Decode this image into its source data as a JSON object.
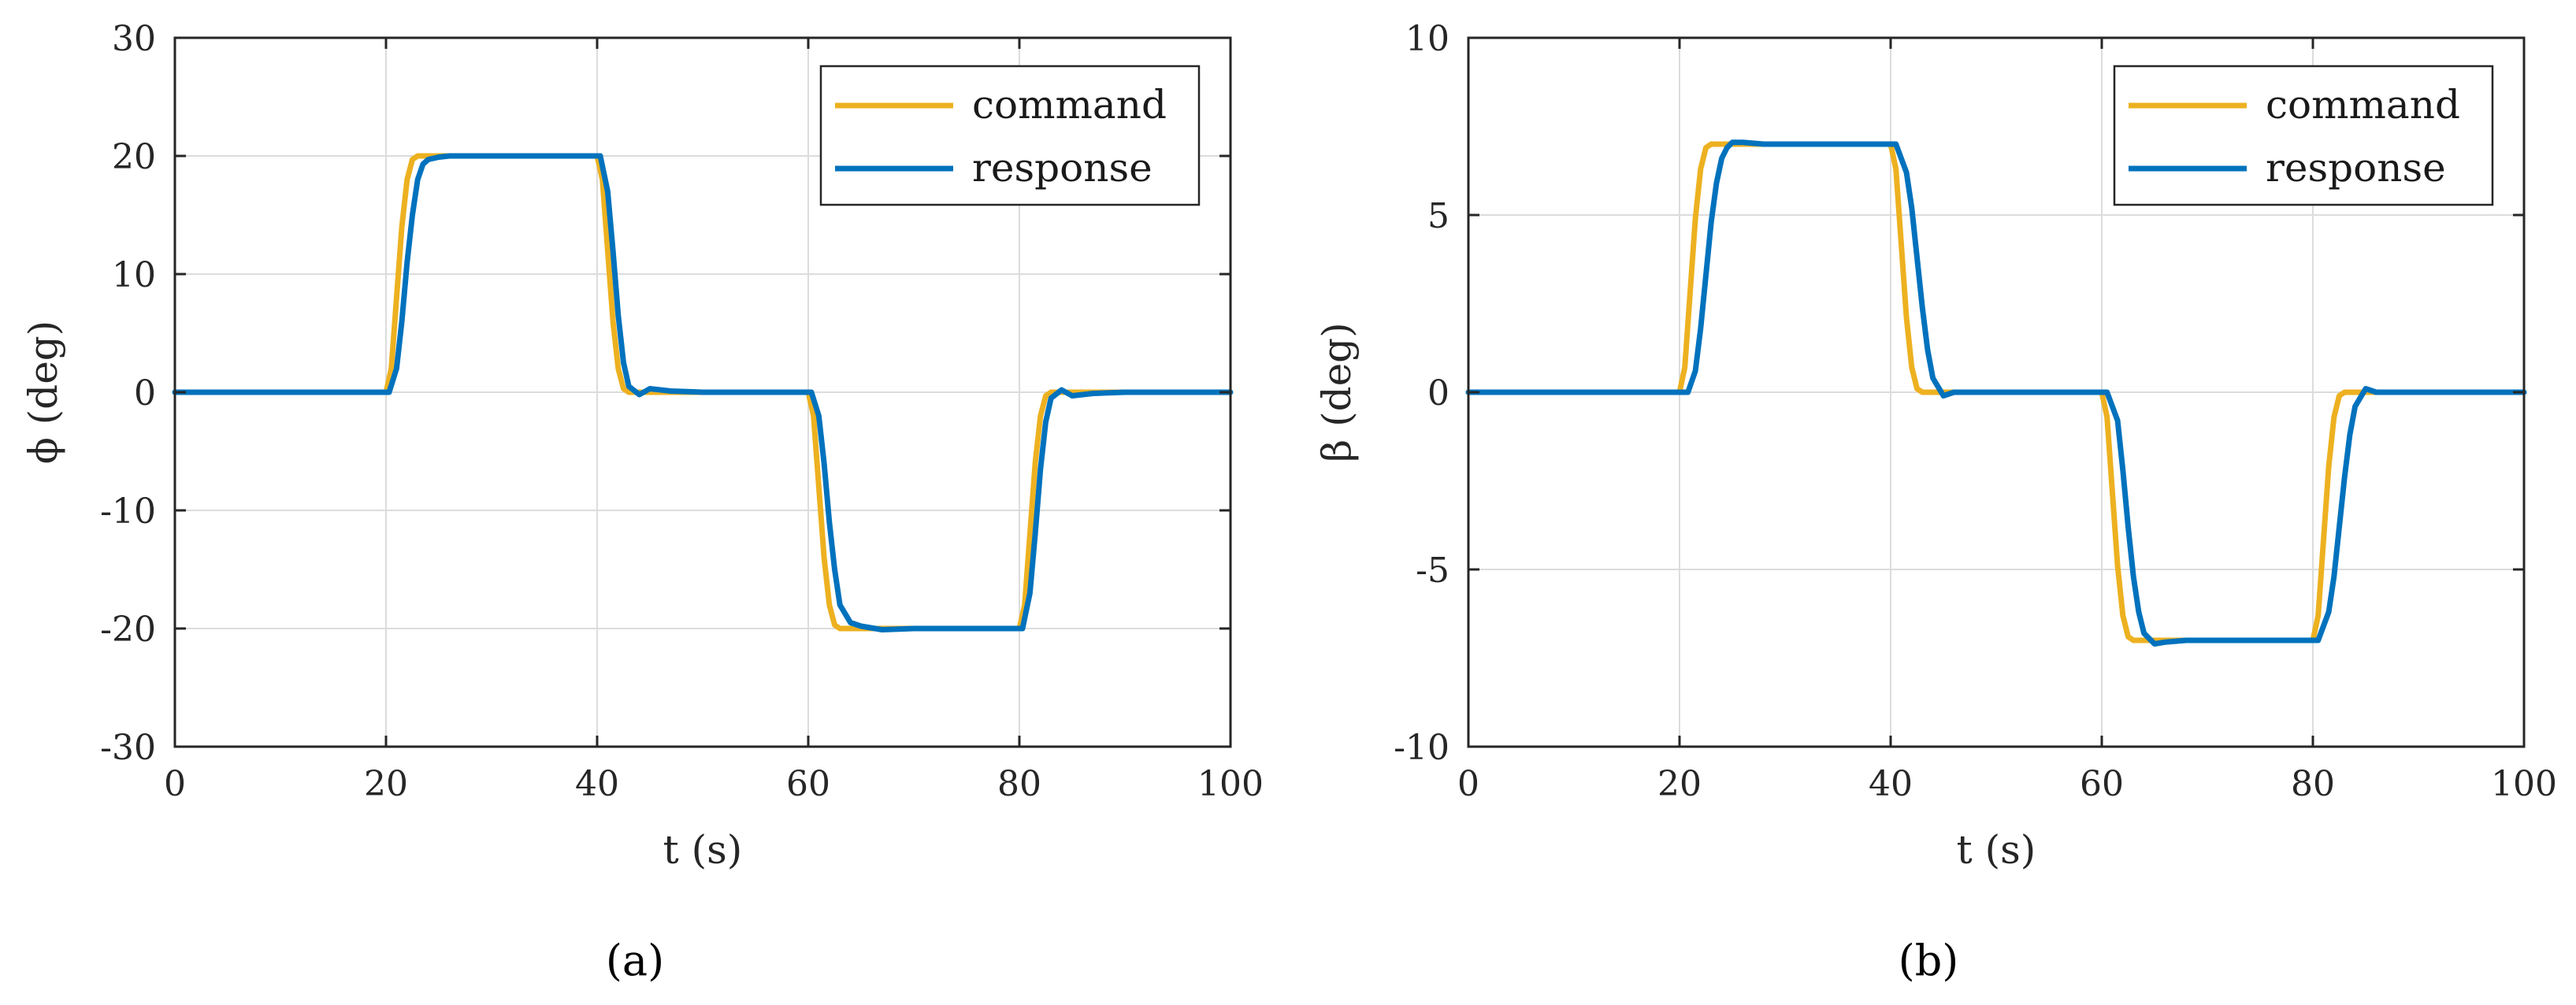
{
  "chart_data": [
    {
      "type": "line",
      "caption": "(a)",
      "xlabel": "t (s)",
      "ylabel": "ϕ (deg)",
      "xlim": [
        0,
        100
      ],
      "ylim": [
        -30,
        30
      ],
      "xticks": [
        0,
        20,
        40,
        60,
        80,
        100
      ],
      "yticks": [
        -30,
        -20,
        -10,
        0,
        10,
        20,
        30
      ],
      "xtick_labels": [
        "0",
        "20",
        "40",
        "60",
        "80",
        "100"
      ],
      "ytick_labels": [
        "-30",
        "-20",
        "-10",
        "0",
        "10",
        "20",
        "30"
      ],
      "grid": true,
      "legend_position": "top-right",
      "series": [
        {
          "name": "command",
          "color": "#EDB120",
          "x": [
            0,
            20,
            20.5,
            21,
            21.5,
            22,
            22.5,
            23,
            40,
            40.5,
            41,
            41.5,
            42,
            42.5,
            43,
            60,
            60.5,
            61,
            61.5,
            62,
            62.5,
            63,
            80,
            80.5,
            81,
            81.5,
            82,
            82.5,
            83,
            100
          ],
          "y": [
            0,
            0,
            2,
            8,
            14,
            18,
            19.7,
            20,
            20,
            18,
            12,
            6,
            2,
            0.3,
            0,
            0,
            -2,
            -8,
            -14,
            -18,
            -19.7,
            -20,
            -20,
            -18,
            -12,
            -6,
            -2,
            -0.3,
            0,
            0
          ]
        },
        {
          "name": "response",
          "color": "#0072BD",
          "x": [
            0,
            20.3,
            21,
            21.5,
            22,
            22.5,
            23,
            23.5,
            24,
            25,
            26,
            40.3,
            41,
            41.5,
            42,
            42.5,
            43,
            44,
            45,
            47,
            50,
            60.3,
            61,
            61.5,
            62,
            62.5,
            63,
            64,
            65,
            67,
            70,
            80.3,
            81,
            81.5,
            82,
            82.5,
            83,
            84,
            85,
            87,
            90,
            100
          ],
          "y": [
            0,
            0,
            2,
            6,
            11,
            15,
            18,
            19.3,
            19.7,
            19.9,
            20,
            20,
            17,
            12,
            6.5,
            2.5,
            0.5,
            -0.2,
            0.3,
            0.1,
            0,
            0,
            -2,
            -6,
            -11,
            -15,
            -18,
            -19.5,
            -19.8,
            -20.1,
            -20,
            -20,
            -17,
            -12,
            -6.5,
            -2.5,
            -0.5,
            0.2,
            -0.3,
            -0.1,
            0,
            0
          ]
        }
      ]
    },
    {
      "type": "line",
      "caption": "(b)",
      "xlabel": "t (s)",
      "ylabel": "β (deg)",
      "xlim": [
        0,
        100
      ],
      "ylim": [
        -10,
        10
      ],
      "xticks": [
        0,
        20,
        40,
        60,
        80,
        100
      ],
      "yticks": [
        -10,
        -5,
        0,
        5,
        10
      ],
      "xtick_labels": [
        "0",
        "20",
        "40",
        "60",
        "80",
        "100"
      ],
      "ytick_labels": [
        "-10",
        "-5",
        "0",
        "5",
        "10"
      ],
      "grid": true,
      "legend_position": "top-right",
      "series": [
        {
          "name": "command",
          "color": "#EDB120",
          "x": [
            0,
            20,
            20.5,
            21,
            21.5,
            22,
            22.5,
            23,
            40,
            40.5,
            41,
            41.5,
            42,
            42.5,
            43,
            60,
            60.5,
            61,
            61.5,
            62,
            62.5,
            63,
            80,
            80.5,
            81,
            81.5,
            82,
            82.5,
            83,
            100
          ],
          "y": [
            0,
            0,
            0.7,
            2.8,
            4.9,
            6.3,
            6.9,
            7,
            7,
            6.3,
            4.2,
            2.1,
            0.7,
            0.1,
            0,
            0,
            -0.7,
            -2.8,
            -4.9,
            -6.3,
            -6.9,
            -7,
            -7,
            -6.3,
            -4.2,
            -2.1,
            -0.7,
            -0.1,
            0,
            0
          ]
        },
        {
          "name": "response",
          "color": "#0072BD",
          "x": [
            0,
            20.8,
            21.5,
            22,
            22.5,
            23,
            23.5,
            24,
            24.5,
            25,
            26,
            28,
            40.5,
            41.5,
            42,
            42.5,
            43,
            43.5,
            44,
            45,
            46,
            48,
            50,
            60.5,
            61.5,
            62,
            62.5,
            63,
            63.5,
            64,
            65,
            66,
            68,
            80.5,
            81.5,
            82,
            82.5,
            83,
            83.5,
            84,
            85,
            86,
            88,
            100
          ],
          "y": [
            0,
            0,
            0.6,
            1.8,
            3.3,
            4.8,
            5.9,
            6.6,
            6.9,
            7.05,
            7.05,
            7,
            7,
            6.2,
            5.2,
            3.8,
            2.4,
            1.2,
            0.4,
            -0.1,
            0,
            0,
            0,
            0,
            -0.8,
            -2.2,
            -3.8,
            -5.2,
            -6.2,
            -6.8,
            -7.1,
            -7.05,
            -7,
            -7,
            -6.2,
            -5.2,
            -3.8,
            -2.4,
            -1.2,
            -0.4,
            0.1,
            0,
            0,
            0
          ]
        }
      ]
    }
  ]
}
